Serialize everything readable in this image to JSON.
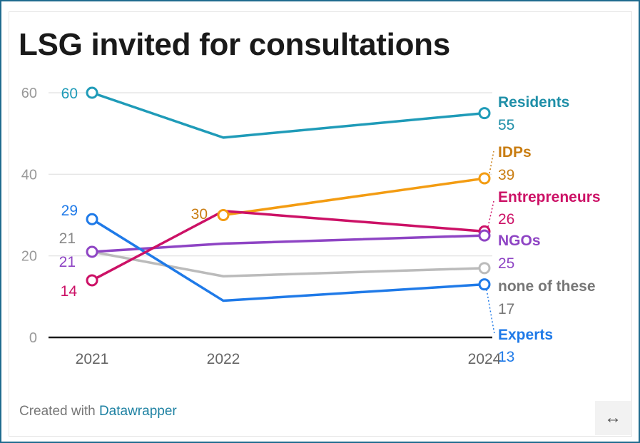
{
  "title": "LSG invited for consultations",
  "footer": {
    "prefix": "Created with",
    "link": "Datawrapper"
  },
  "expand_icon": "↔",
  "colors": {
    "axis": "#1a1a1a",
    "grid": "#e6e6e6",
    "tick": "#999999"
  },
  "chart_data": {
    "type": "line",
    "x": [
      "2021",
      "2022",
      "2024"
    ],
    "ylim": [
      0,
      60
    ],
    "yticks": [
      "0",
      "20",
      "40",
      "60"
    ],
    "grid": true,
    "series": [
      {
        "name": "Residents",
        "color": "#1f9bb8",
        "values": [
          60,
          49,
          55
        ],
        "start_label": "60",
        "end_label": "55"
      },
      {
        "name": "IDPs",
        "color": "#f39c12",
        "values": [
          null,
          30,
          39
        ],
        "mid_label": "30",
        "end_label": "39"
      },
      {
        "name": "Entrepreneurs",
        "color": "#cc1166",
        "values": [
          14,
          31,
          26
        ],
        "start_label": "14",
        "end_label": "26"
      },
      {
        "name": "NGOs",
        "color": "#8e44c4",
        "values": [
          21,
          23,
          25
        ],
        "start_label": "21",
        "end_label": "25"
      },
      {
        "name": "none of these",
        "color": "#bbbbbb",
        "values": [
          21,
          15,
          17
        ],
        "start_label": "21",
        "end_label": "17"
      },
      {
        "name": "Experts",
        "color": "#1f7ae8",
        "values": [
          29,
          9,
          13
        ],
        "start_label": "29",
        "end_label": "13"
      }
    ]
  }
}
